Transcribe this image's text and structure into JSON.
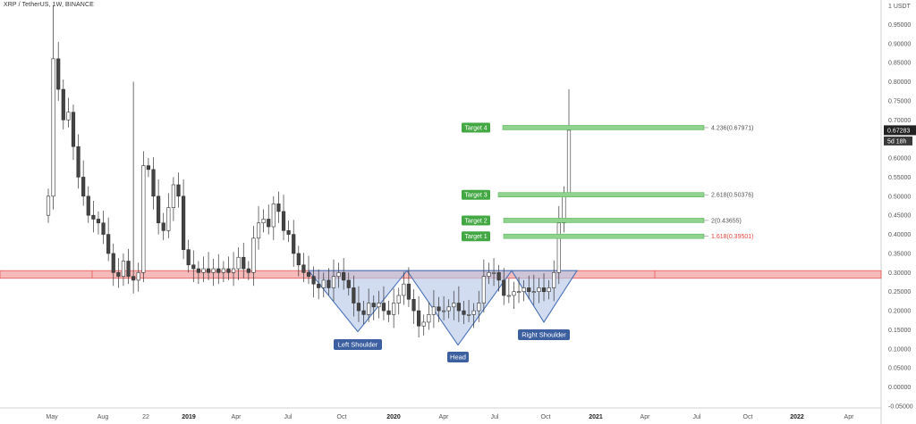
{
  "header": {
    "symbol_text": "XRP / TetherUS, 1W, BINANCE"
  },
  "price_scale": {
    "unit_label": "1 USDT",
    "ticks": [
      "0.95000",
      "0.90000",
      "0.85000",
      "0.80000",
      "0.75000",
      "0.70000",
      "0.65000",
      "0.60000",
      "0.55000",
      "0.50000",
      "0.45000",
      "0.40000",
      "0.35000",
      "0.30000",
      "0.25000",
      "0.20000",
      "0.15000",
      "0.10000",
      "0.05000",
      "0.00000",
      "-0.05000"
    ],
    "current_price": "0.67283",
    "countdown": "5d 18h"
  },
  "time_axis": {
    "labels": [
      {
        "t": "May",
        "bold": false
      },
      {
        "t": "Aug",
        "bold": false
      },
      {
        "t": "22",
        "bold": false
      },
      {
        "t": "2019",
        "bold": true
      },
      {
        "t": "Apr",
        "bold": false
      },
      {
        "t": "Jul",
        "bold": false
      },
      {
        "t": "Oct",
        "bold": false
      },
      {
        "t": "2020",
        "bold": true
      },
      {
        "t": "Apr",
        "bold": false
      },
      {
        "t": "Jul",
        "bold": false
      },
      {
        "t": "Oct",
        "bold": false
      },
      {
        "t": "2021",
        "bold": true
      },
      {
        "t": "Apr",
        "bold": false
      },
      {
        "t": "Jul",
        "bold": false
      },
      {
        "t": "Oct",
        "bold": false
      },
      {
        "t": "2022",
        "bold": true
      },
      {
        "t": "Apr",
        "bold": false
      }
    ]
  },
  "pattern_labels": {
    "left_shoulder": "Left Shoulder",
    "head": "Head",
    "right_shoulder": "Right Shoulder"
  },
  "targets": [
    {
      "label": "Target 1",
      "value_text": "1.618(0.39501)",
      "value": 0.39501,
      "text_color": "#e0463a"
    },
    {
      "label": "Target 2",
      "value_text": "2(0.43655)",
      "value": 0.43655,
      "text_color": "#555555"
    },
    {
      "label": "Target 3",
      "value_text": "2.618(0.50376)",
      "value": 0.50376,
      "text_color": "#555555"
    },
    {
      "label": "Target 4",
      "value_text": "4.236(0.67971)",
      "value": 0.67971,
      "text_color": "#555555"
    }
  ],
  "colors": {
    "support_zone": "#f4a3a3",
    "support_border": "#e05a5a",
    "target_bar": "#8fd38f",
    "target_label_bg": "#43a843",
    "pattern_fill": "#b9c9e8",
    "pattern_line": "#4a72b8",
    "badge_bg": "#3b5f9f",
    "price_badge": "#222222"
  },
  "chart_data": {
    "type": "candlestick",
    "title": "XRP / TetherUS, 1W, BINANCE",
    "ylim": [
      -0.05,
      1.0
    ],
    "support_zone": [
      0.285,
      0.305
    ],
    "neckline": 0.305,
    "pattern": "inverse head and shoulders",
    "pattern_points": [
      {
        "x": "2019-09",
        "y": 0.305
      },
      {
        "x": "2019-11",
        "y": 0.145
      },
      {
        "x": "2020-01",
        "y": 0.305
      },
      {
        "x": "2020-04",
        "y": 0.11
      },
      {
        "x": "2020-08",
        "y": 0.305
      },
      {
        "x": "2020-10",
        "y": 0.17
      },
      {
        "x": "2020-11",
        "y": 0.305
      }
    ],
    "current_price": 0.67283,
    "candles_close": [
      0.5,
      0.86,
      0.78,
      0.7,
      0.72,
      0.63,
      0.55,
      0.5,
      0.45,
      0.44,
      0.43,
      0.4,
      0.35,
      0.3,
      0.29,
      0.33,
      0.29,
      0.28,
      0.3,
      0.58,
      0.57,
      0.5,
      0.43,
      0.41,
      0.47,
      0.53,
      0.5,
      0.36,
      0.32,
      0.31,
      0.3,
      0.31,
      0.3,
      0.31,
      0.3,
      0.31,
      0.3,
      0.31,
      0.34,
      0.31,
      0.3,
      0.39,
      0.43,
      0.44,
      0.42,
      0.48,
      0.46,
      0.41,
      0.4,
      0.35,
      0.32,
      0.3,
      0.29,
      0.27,
      0.26,
      0.28,
      0.26,
      0.29,
      0.3,
      0.28,
      0.26,
      0.22,
      0.2,
      0.19,
      0.22,
      0.21,
      0.22,
      0.2,
      0.19,
      0.22,
      0.24,
      0.27,
      0.23,
      0.2,
      0.16,
      0.17,
      0.19,
      0.21,
      0.2,
      0.2,
      0.21,
      0.22,
      0.2,
      0.19,
      0.19,
      0.2,
      0.22,
      0.29,
      0.3,
      0.3,
      0.28,
      0.24,
      0.24,
      0.25,
      0.25,
      0.26,
      0.25,
      0.25,
      0.26,
      0.25,
      0.26,
      0.3,
      0.43,
      0.5,
      0.67283
    ]
  }
}
